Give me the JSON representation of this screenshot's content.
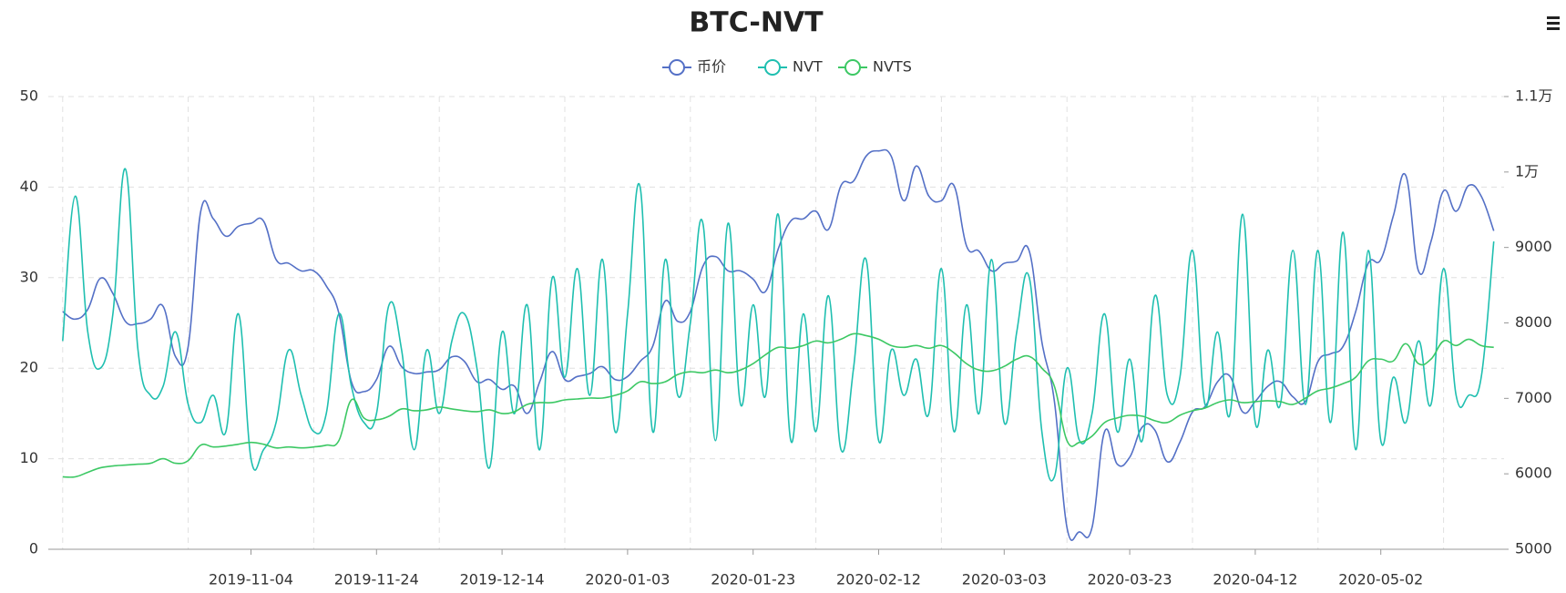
{
  "chart_data": {
    "type": "line",
    "title": "BTC-NVT",
    "categories": [
      null,
      null,
      null,
      null,
      null,
      null,
      null,
      null,
      null,
      null,
      null,
      null,
      null,
      null,
      null,
      "2019-11-04",
      null,
      null,
      null,
      null,
      null,
      null,
      null,
      null,
      null,
      "2019-11-24",
      null,
      null,
      null,
      null,
      null,
      null,
      null,
      null,
      null,
      "2019-12-14",
      null,
      null,
      null,
      null,
      null,
      null,
      null,
      null,
      null,
      "2020-01-03",
      null,
      null,
      null,
      null,
      null,
      null,
      null,
      null,
      null,
      "2020-01-23",
      null,
      null,
      null,
      null,
      null,
      null,
      null,
      null,
      null,
      "2020-02-12",
      null,
      null,
      null,
      null,
      null,
      null,
      null,
      null,
      null,
      "2020-03-03",
      null,
      null,
      null,
      null,
      null,
      null,
      null,
      null,
      null,
      "2020-03-23",
      null,
      null,
      null,
      null,
      null,
      null,
      null,
      null,
      null,
      "2020-04-12",
      null,
      null,
      null,
      null,
      null,
      null,
      null,
      null,
      null,
      "2020-05-02",
      null,
      null,
      null,
      null,
      null,
      null,
      null,
      null,
      null
    ],
    "series": [
      {
        "name": "币价",
        "color": "#5470c6",
        "axis": "y2",
        "values": [
          8150,
          8050,
          8180,
          8590,
          8390,
          8020,
          7990,
          8050,
          8220,
          7550,
          7690,
          9480,
          9380,
          9150,
          9280,
          9320,
          9350,
          8840,
          8790,
          8690,
          8690,
          8490,
          8130,
          7220,
          7090,
          7250,
          7690,
          7420,
          7330,
          7350,
          7380,
          7550,
          7490,
          7220,
          7250,
          7120,
          7160,
          6800,
          7220,
          7620,
          7250,
          7290,
          7330,
          7420,
          7250,
          7290,
          7490,
          7690,
          8290,
          8020,
          8150,
          8750,
          8880,
          8690,
          8690,
          8580,
          8420,
          8980,
          9350,
          9380,
          9480,
          9240,
          9820,
          9880,
          10210,
          10280,
          10210,
          9620,
          10080,
          9680,
          9620,
          9820,
          9020,
          8950,
          8690,
          8790,
          8820,
          8950,
          7750,
          6960,
          5290,
          5230,
          5290,
          6560,
          6130,
          6220,
          6620,
          6580,
          6160,
          6420,
          6820,
          6890,
          7220,
          7290,
          6820,
          6960,
          7160,
          7220,
          7020,
          6960,
          7490,
          7590,
          7690,
          8150,
          8790,
          8840,
          9420,
          9950,
          8690,
          9080,
          9750,
          9480,
          9820,
          9680,
          9220
        ]
      },
      {
        "name": "NVT",
        "color": "#1fbfb0",
        "values": [
          23,
          39,
          24,
          20,
          26,
          42,
          22,
          17,
          18,
          24,
          16,
          14,
          17,
          13,
          26,
          10,
          11,
          14,
          22,
          17,
          13,
          15,
          26,
          18,
          14,
          15,
          27,
          22,
          11,
          22,
          15,
          23,
          26,
          20,
          9,
          24,
          15,
          27,
          11,
          30,
          19,
          31,
          17,
          32,
          13,
          26,
          40,
          13,
          32,
          17,
          25,
          36,
          12,
          36,
          16,
          27,
          17,
          37,
          12,
          26,
          13,
          28,
          11,
          20,
          32,
          12,
          22,
          17,
          21,
          15,
          31,
          13,
          27,
          15,
          32,
          14,
          24,
          30,
          13,
          8,
          20,
          12,
          15,
          26,
          13,
          21,
          12,
          28,
          17,
          19,
          33,
          16,
          24,
          15,
          37,
          14,
          22,
          16,
          33,
          16,
          33,
          14,
          35,
          11,
          33,
          12,
          19,
          14,
          23,
          16,
          31,
          17,
          17,
          19,
          34
        ]
      },
      {
        "name": "NVTS",
        "color": "#3cc864",
        "values": [
          8,
          8,
          8.5,
          9,
          9.2,
          9.3,
          9.4,
          9.5,
          10,
          9.5,
          9.8,
          11.5,
          11.3,
          11.4,
          11.6,
          11.8,
          11.6,
          11.2,
          11.3,
          11.2,
          11.3,
          11.5,
          12,
          16.5,
          14.5,
          14.3,
          14.7,
          15.5,
          15.3,
          15.4,
          15.7,
          15.5,
          15.3,
          15.2,
          15.4,
          15,
          15.2,
          16,
          16.2,
          16.2,
          16.5,
          16.6,
          16.7,
          16.7,
          17,
          17.5,
          18.5,
          18.3,
          18.5,
          19.3,
          19.6,
          19.5,
          19.8,
          19.5,
          19.8,
          20.5,
          21.5,
          22.3,
          22.2,
          22.5,
          23,
          22.8,
          23.2,
          23.8,
          23.6,
          23.2,
          22.5,
          22.3,
          22.5,
          22.2,
          22.5,
          21.7,
          20.5,
          19.8,
          19.7,
          20.2,
          21,
          21.3,
          20,
          18,
          12,
          11.8,
          12.5,
          14,
          14.5,
          14.8,
          14.7,
          14.2,
          14,
          14.8,
          15.3,
          15.6,
          16.2,
          16.5,
          16.2,
          16.3,
          16.4,
          16.3,
          16,
          16.7,
          17.5,
          17.8,
          18.3,
          19,
          20.8,
          21,
          20.8,
          22.7,
          20.5,
          21,
          23,
          22.5,
          23.2,
          22.5,
          22.3
        ]
      }
    ],
    "ylim": [
      0,
      50
    ],
    "yticks": [
      0,
      10,
      20,
      30,
      40,
      50
    ],
    "y2lim": [
      5000,
      11000
    ],
    "y2ticks": [
      5000,
      6000,
      7000,
      8000,
      9000,
      {
        "value": 10000,
        "label": "1万"
      },
      {
        "value": 11000,
        "label": "1.1万"
      }
    ],
    "grid": true
  }
}
